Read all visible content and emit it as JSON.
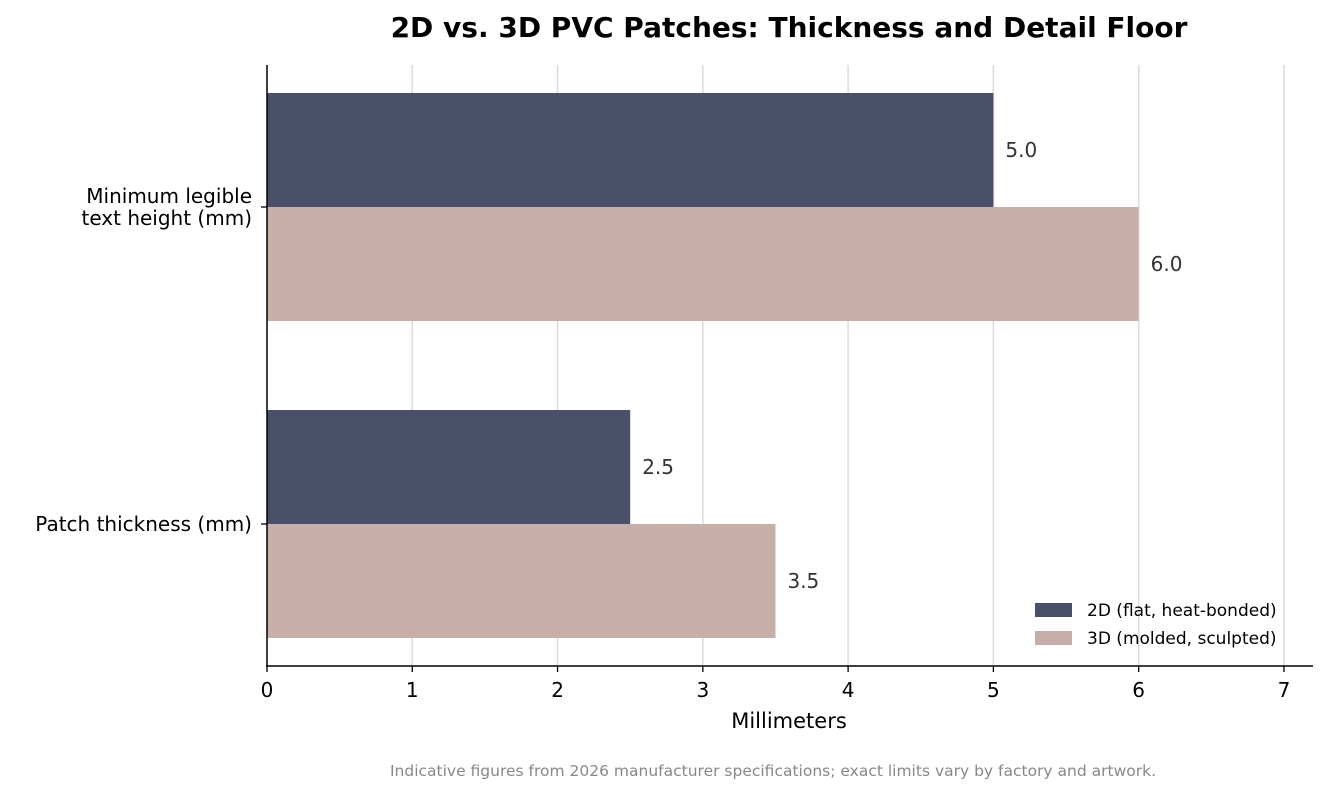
{
  "chart_data": {
    "type": "bar",
    "orientation": "horizontal",
    "title": "2D vs. 3D PVC Patches: Thickness and Detail Floor",
    "xlabel": "Millimeters",
    "categories": [
      [
        "Minimum legible",
        "text height (mm)"
      ],
      [
        "Patch thickness (mm)"
      ]
    ],
    "series": [
      {
        "name": "2D (flat, heat-bonded)",
        "color": "#4a4f6a",
        "values": [
          5.0,
          2.5
        ],
        "labels": [
          "5.0",
          "2.5"
        ]
      },
      {
        "name": "3D (molded, sculpted)",
        "color": "#c8aea8",
        "values": [
          6.0,
          3.5
        ],
        "labels": [
          "6.0",
          "3.5"
        ]
      }
    ],
    "xlim": [
      0,
      7.2
    ],
    "xticks": [
      0,
      1,
      2,
      3,
      4,
      5,
      6,
      7
    ],
    "grid": "vertical",
    "legend_position": "lower-right",
    "footnote": "Indicative figures from 2026 manufacturer specifications; exact limits vary by factory and artwork."
  }
}
